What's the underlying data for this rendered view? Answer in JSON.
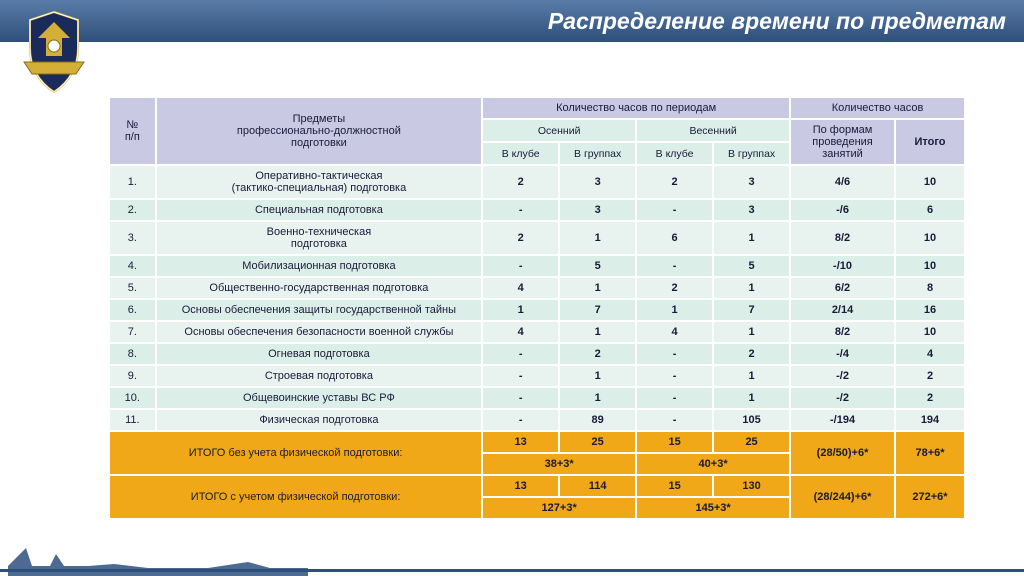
{
  "title": "Распределение времени по предметам",
  "colors": {
    "header_grad_top": "#5a7ca8",
    "header_grad_bot": "#2d4f7a",
    "th_bg": "#c9c9e4",
    "sub_bg": "#dceee8",
    "row_a": "#e8f2ee",
    "row_b": "#dceee8",
    "total_bg": "#f0a818",
    "text": "#1a1a3a"
  },
  "head": {
    "c1": "№\nп/п",
    "c2": "Предметы\nпрофессионально-должностной\nподготовки",
    "g1": "Количество часов по периодам",
    "g2": "Количество часов",
    "p1": "Осенний",
    "p2": "Весенний",
    "s1": "В клубе",
    "s2": "В группах",
    "s3": "В клубе",
    "s4": "В группах",
    "f1": "По формам\nпроведения\nзанятий",
    "f2": "Итого"
  },
  "rows": [
    {
      "n": "1.",
      "subj": "Оперативно-тактическая\n(тактико-специальная) подготовка",
      "c": [
        "2",
        "3",
        "2",
        "3",
        "4/6",
        "10"
      ]
    },
    {
      "n": "2.",
      "subj": "Специальная подготовка",
      "c": [
        "-",
        "3",
        "-",
        "3",
        "-/6",
        "6"
      ]
    },
    {
      "n": "3.",
      "subj": "Военно-техническая\nподготовка",
      "c": [
        "2",
        "1",
        "6",
        "1",
        "8/2",
        "10"
      ]
    },
    {
      "n": "4.",
      "subj": "Мобилизационная подготовка",
      "c": [
        "-",
        "5",
        "-",
        "5",
        "-/10",
        "10"
      ]
    },
    {
      "n": "5.",
      "subj": "Общественно-государственная подготовка",
      "c": [
        "4",
        "1",
        "2",
        "1",
        "6/2",
        "8"
      ]
    },
    {
      "n": "6.",
      "subj": "Основы обеспечения защиты государственной тайны",
      "c": [
        "1",
        "7",
        "1",
        "7",
        "2/14",
        "16"
      ]
    },
    {
      "n": "7.",
      "subj": "Основы обеспечения безопасности военной службы",
      "c": [
        "4",
        "1",
        "4",
        "1",
        "8/2",
        "10"
      ]
    },
    {
      "n": "8.",
      "subj": "Огневая подготовка",
      "c": [
        "-",
        "2",
        "-",
        "2",
        "-/4",
        "4"
      ]
    },
    {
      "n": "9.",
      "subj": "Строевая подготовка",
      "c": [
        "-",
        "1",
        "-",
        "1",
        "-/2",
        "2"
      ]
    },
    {
      "n": "10.",
      "subj": "Общевоинские уставы ВС РФ",
      "c": [
        "-",
        "1",
        "-",
        "1",
        "-/2",
        "2"
      ]
    },
    {
      "n": "11.",
      "subj": "Физическая подготовка",
      "c": [
        "-",
        "89",
        "-",
        "105",
        "-/194",
        "194"
      ]
    }
  ],
  "totals": {
    "t1_label": "ИТОГО без учета физической подготовки:",
    "t1_r1": [
      "13",
      "25",
      "15",
      "25"
    ],
    "t1_forms": "(28/50)+6*",
    "t1_itog": "78+6*",
    "t1_r2": [
      "38+3*",
      "40+3*"
    ],
    "t2_label": "ИТОГО с учетом физической подготовки:",
    "t2_r1": [
      "13",
      "114",
      "15",
      "130"
    ],
    "t2_forms": "(28/244)+6*",
    "t2_itog": "272+6*",
    "t2_r2": [
      "127+3*",
      "145+3*"
    ]
  }
}
